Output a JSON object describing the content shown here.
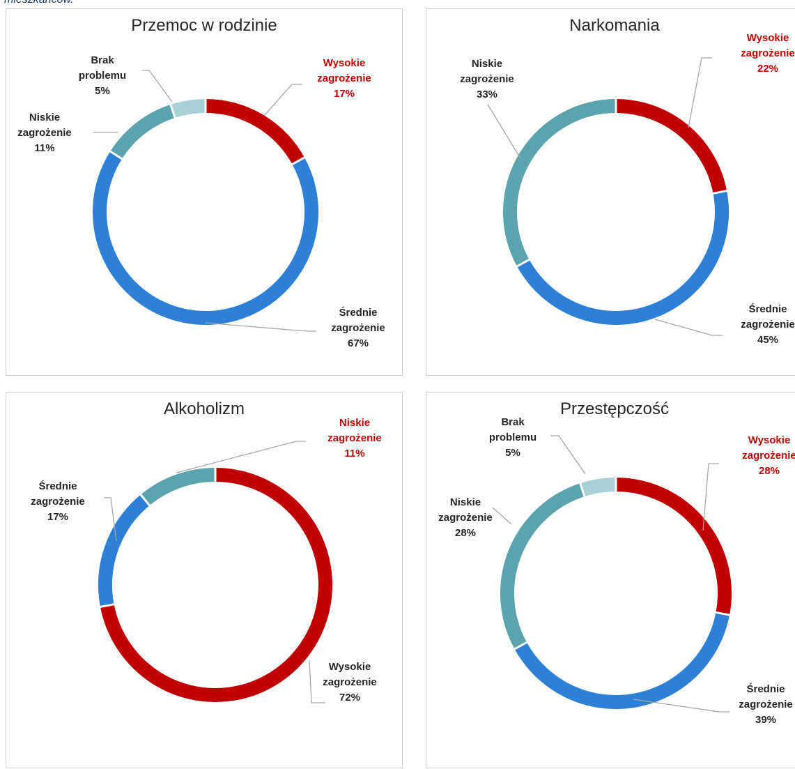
{
  "caption": "mieszkańców.",
  "colors": {
    "wysokie": "#c00000",
    "srednie": "#2e7fd6",
    "niskie": "#5ba3ad",
    "brak": "#a9d0d6",
    "leader": "#a6a6a6",
    "label_dark": "#262626",
    "label_red": "#c00000"
  },
  "chart_data": [
    {
      "type": "pie",
      "donut": true,
      "title": "Przemoc w rodzinie",
      "slices": [
        {
          "name_line1": "Wysokie",
          "name_line2": "zagrożenie",
          "value": 17,
          "value_label": "17%",
          "color_key": "wysokie",
          "label_color": "red"
        },
        {
          "name_line1": "Średnie",
          "name_line2": "zagrożenie",
          "value": 67,
          "value_label": "67%",
          "color_key": "srednie",
          "label_color": "dark"
        },
        {
          "name_line1": "Niskie",
          "name_line2": "zagrożenie",
          "value": 11,
          "value_label": "11%",
          "color_key": "niskie",
          "label_color": "dark"
        },
        {
          "name_line1": "Brak",
          "name_line2": "problemu",
          "value": 5,
          "value_label": "5%",
          "color_key": "brak",
          "label_color": "dark"
        }
      ]
    },
    {
      "type": "pie",
      "donut": true,
      "title": "Narkomania",
      "slices": [
        {
          "name_line1": "Wysokie",
          "name_line2": "zagrożenie",
          "value": 22,
          "value_label": "22%",
          "color_key": "wysokie",
          "label_color": "red"
        },
        {
          "name_line1": "Średnie",
          "name_line2": "zagrożenie",
          "value": 45,
          "value_label": "45%",
          "color_key": "srednie",
          "label_color": "dark"
        },
        {
          "name_line1": "Niskie",
          "name_line2": "zagrożenie",
          "value": 33,
          "value_label": "33%",
          "color_key": "niskie",
          "label_color": "dark"
        }
      ]
    },
    {
      "type": "pie",
      "donut": true,
      "title": "Alkoholizm",
      "slices": [
        {
          "name_line1": "Wysokie",
          "name_line2": "zagrożenie",
          "value": 72,
          "value_label": "72%",
          "color_key": "wysokie",
          "label_color": "dark"
        },
        {
          "name_line1": "Średnie",
          "name_line2": "zagrożenie",
          "value": 17,
          "value_label": "17%",
          "color_key": "srednie",
          "label_color": "dark"
        },
        {
          "name_line1": "Niskie",
          "name_line2": "zagrożenie",
          "value": 11,
          "value_label": "11%",
          "color_key": "niskie",
          "label_color": "red"
        }
      ]
    },
    {
      "type": "pie",
      "donut": true,
      "title": "Przestępczość",
      "slices": [
        {
          "name_line1": "Wysokie",
          "name_line2": "zagrożenie",
          "value": 28,
          "value_label": "28%",
          "color_key": "wysokie",
          "label_color": "red"
        },
        {
          "name_line1": "Średnie",
          "name_line2": "zagrożenie",
          "value": 39,
          "value_label": "39%",
          "color_key": "srednie",
          "label_color": "dark"
        },
        {
          "name_line1": "Niskie",
          "name_line2": "zagrożenie",
          "value": 28,
          "value_label": "28%",
          "color_key": "niskie",
          "label_color": "dark"
        },
        {
          "name_line1": "Brak",
          "name_line2": "problemu",
          "value": 5,
          "value_label": "5%",
          "color_key": "brak",
          "label_color": "dark"
        }
      ]
    }
  ]
}
